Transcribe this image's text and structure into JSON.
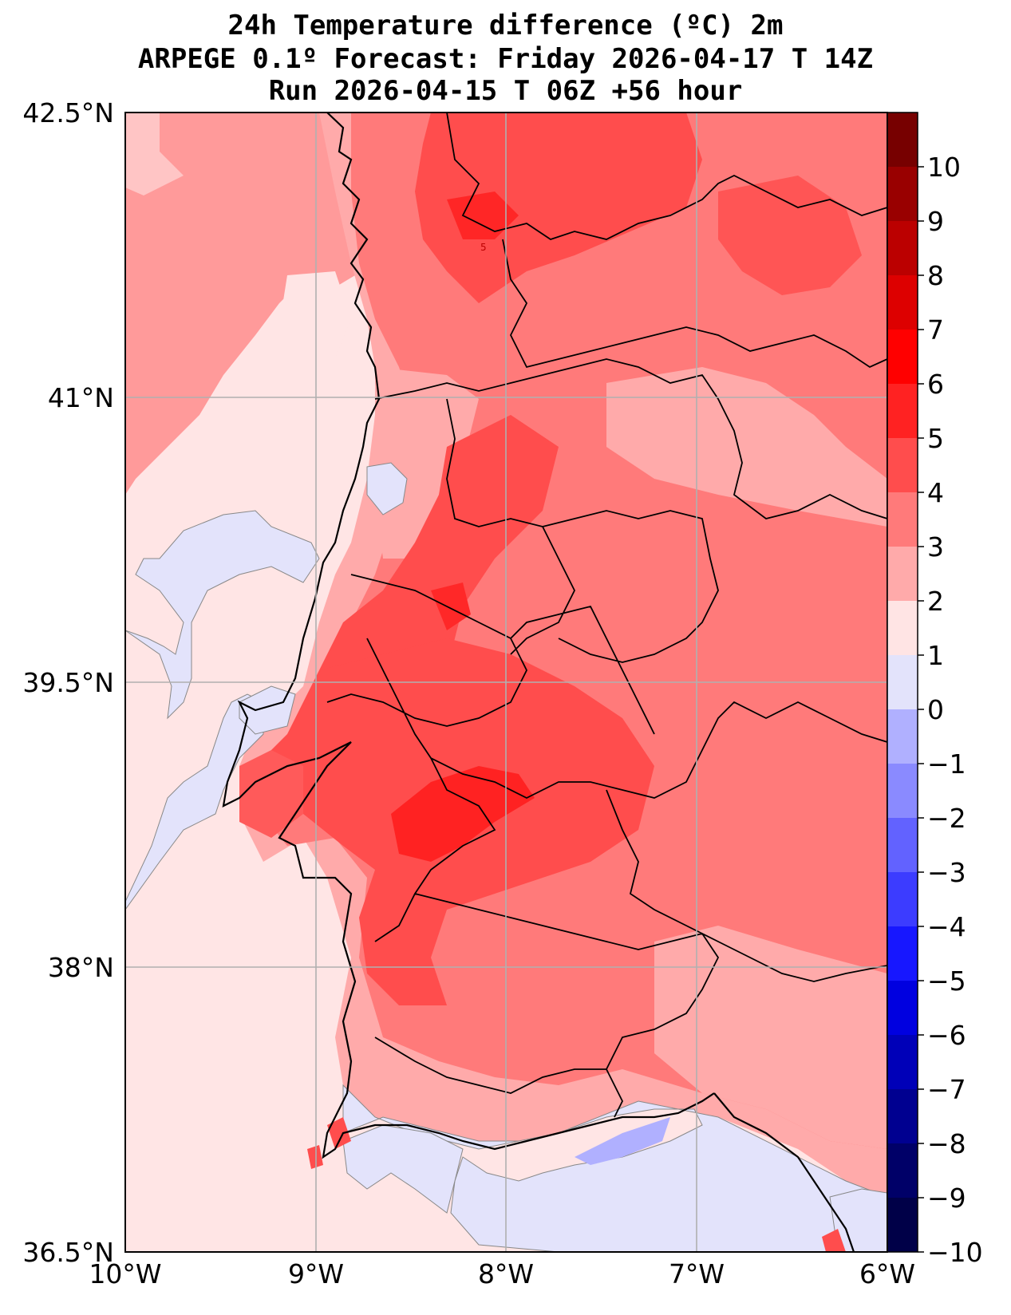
{
  "title": {
    "line1": "24h Temperature difference (ºC) 2m",
    "line2": "ARPEGE 0.1º Forecast: Friday 2026-04-17 T 14Z",
    "line3": "Run 2026-04-15 T 06Z +56 hour"
  },
  "map": {
    "lat_labels": [
      "42.5°N",
      "41°N",
      "39.5°N",
      "38°N",
      "36.5°N"
    ],
    "lon_labels": [
      "10°W",
      "9°W",
      "8°W",
      "7°W",
      "6°W"
    ],
    "lat_range": [
      36.5,
      42.5
    ],
    "lon_range": [
      -10,
      -6
    ],
    "grid": true,
    "contour_label": "5"
  },
  "colorbar": {
    "ticks": [
      "10",
      "9",
      "8",
      "7",
      "6",
      "5",
      "4",
      "3",
      "2",
      "1",
      "0",
      "−1",
      "−2",
      "−3",
      "−4",
      "−5",
      "−6",
      "−7",
      "−8",
      "−9",
      "−10"
    ],
    "colors": [
      "#770000",
      "#990000",
      "#bb0000",
      "#dd0000",
      "#ff0000",
      "#ff2222",
      "#ff4d4d",
      "#ff7a7a",
      "#ffaaaa",
      "#ffe4e4",
      "#e3e3fb",
      "#b0b0ff",
      "#8a8aff",
      "#6262ff",
      "#3c3cff",
      "#1717ff",
      "#0000e0",
      "#0000b8",
      "#000090",
      "#000068",
      "#000048"
    ]
  },
  "colors": {
    "sea": "#ffe5e5",
    "positive_weak": "#ffaaaa",
    "positive_mid": "#ff7a7a",
    "positive_strong": "#ff4d4d",
    "negative_weak": "#e3e3fb",
    "negative_mid": "#b0b0ff"
  }
}
